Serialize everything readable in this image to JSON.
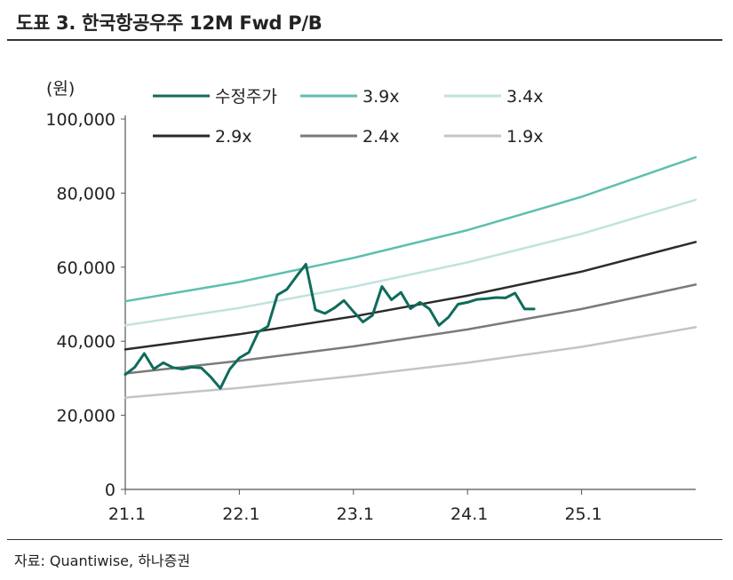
{
  "header": {
    "title": "도표 3. 한국항공우주 12M Fwd P/B"
  },
  "footer": {
    "source": "자료: Quantiwise, 하나증권"
  },
  "colors": {
    "price": "#0f6b5b",
    "pb_3_9": "#5dbfb0",
    "pb_3_4": "#bfe3de",
    "pb_2_9": "#2b2b2b",
    "pb_2_4": "#7a7a7a",
    "pb_1_9": "#c4c4c4",
    "axis": "#555555"
  },
  "chart_data": {
    "type": "line",
    "title": "한국항공우주 12M Fwd P/B",
    "unit_label": "(원)",
    "ylim": [
      0,
      100000
    ],
    "yticks": [
      0,
      20000,
      40000,
      60000,
      80000,
      100000
    ],
    "ytick_labels": [
      "0",
      "20,000",
      "40,000",
      "60,000",
      "80,000",
      "100,000"
    ],
    "xlim": [
      0,
      60
    ],
    "xticks": [
      0,
      12,
      24,
      36,
      48
    ],
    "xtick_labels": [
      "21.1",
      "22.1",
      "23.1",
      "24.1",
      "25.1"
    ],
    "legend_position": "top",
    "series": [
      {
        "name": "수정주가",
        "color_key": "price",
        "width": 3,
        "x": [
          0,
          1,
          2,
          3,
          4,
          5,
          6,
          7,
          8,
          9,
          10,
          11,
          12,
          13,
          14,
          15,
          16,
          17,
          18,
          19,
          20,
          21,
          22,
          23,
          24,
          25,
          26,
          27,
          28,
          29,
          30,
          31,
          32,
          33,
          34,
          35,
          36,
          37,
          38,
          39,
          40,
          41,
          42,
          43
        ],
        "y": [
          31000,
          33000,
          36700,
          32500,
          34200,
          32900,
          32500,
          33000,
          32800,
          30300,
          27300,
          32500,
          35500,
          37000,
          42500,
          44000,
          52500,
          54000,
          57500,
          60800,
          48500,
          47500,
          49000,
          51000,
          48000,
          45200,
          47000,
          54800,
          51200,
          53200,
          48800,
          50500,
          48700,
          44300,
          46500,
          50000,
          50500,
          51300,
          51500,
          51800,
          51700,
          53000,
          48700,
          48700
        ]
      },
      {
        "name": "3.9x",
        "color_key": "pb_3_9",
        "width": 2.5,
        "x": [
          0,
          12,
          24,
          36,
          48,
          60
        ],
        "y": [
          50800,
          56000,
          62500,
          70000,
          79000,
          89700
        ]
      },
      {
        "name": "3.4x",
        "color_key": "pb_3_4",
        "width": 2.5,
        "x": [
          0,
          12,
          24,
          36,
          48,
          60
        ],
        "y": [
          44300,
          49000,
          54700,
          61300,
          69000,
          78200
        ]
      },
      {
        "name": "2.9x",
        "color_key": "pb_2_9",
        "width": 2.5,
        "x": [
          0,
          12,
          24,
          36,
          48,
          60
        ],
        "y": [
          37800,
          41900,
          46700,
          52300,
          58800,
          66800
        ]
      },
      {
        "name": "2.4x",
        "color_key": "pb_2_4",
        "width": 2.5,
        "x": [
          0,
          12,
          24,
          36,
          48,
          60
        ],
        "y": [
          31300,
          34700,
          38600,
          43200,
          48700,
          55300
        ]
      },
      {
        "name": "1.9x",
        "color_key": "pb_1_9",
        "width": 2.5,
        "x": [
          0,
          12,
          24,
          36,
          48,
          60
        ],
        "y": [
          24800,
          27400,
          30600,
          34200,
          38500,
          43800
        ]
      }
    ]
  }
}
